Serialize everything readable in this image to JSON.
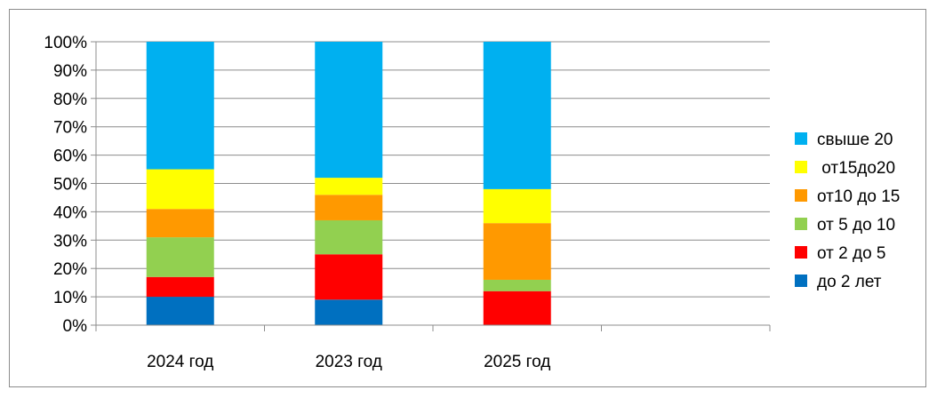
{
  "chart_data": {
    "type": "bar",
    "stacked": true,
    "percent_stacked": true,
    "categories": [
      "2024 год",
      "2023 год",
      "2025 год",
      ""
    ],
    "series": [
      {
        "name": "до 2 лет",
        "color": "#0070c0",
        "values": [
          10,
          9,
          0,
          0
        ]
      },
      {
        "name": "от 2 до 5",
        "color": "#ff0000",
        "values": [
          7,
          16,
          12,
          0
        ]
      },
      {
        "name": "от 5 до 10",
        "color": "#92d050",
        "values": [
          14,
          12,
          4,
          0
        ]
      },
      {
        "name": "от10 до 15",
        "color": "#ff9900",
        "values": [
          10,
          9,
          20,
          0
        ]
      },
      {
        "name": " от15до20",
        "color": "#ffff00",
        "values": [
          14,
          6,
          12,
          0
        ]
      },
      {
        "name": "свыше 20",
        "color": "#00b0f0",
        "values": [
          45,
          48,
          52,
          0
        ]
      }
    ],
    "ylim": [
      0,
      100
    ],
    "y_ticks": [
      "0%",
      "10%",
      "20%",
      "30%",
      "40%",
      "50%",
      "60%",
      "70%",
      "80%",
      "90%",
      "100%"
    ],
    "grid": true,
    "legend": "right",
    "title": "",
    "xlabel": "",
    "ylabel": ""
  }
}
